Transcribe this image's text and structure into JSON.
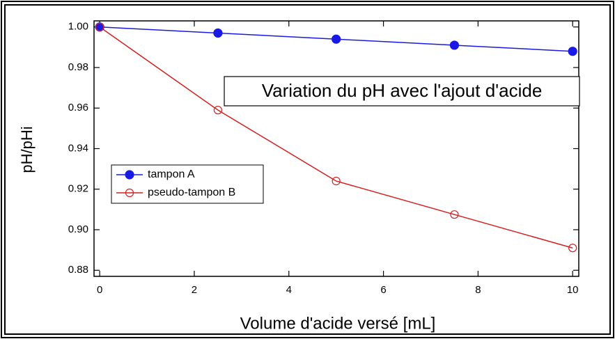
{
  "chart_data": {
    "type": "line",
    "x_label": "Volume d'acide versé [mL]",
    "y_label": "pH/pHi",
    "annotation": "Variation du pH avec l'ajout d'acide",
    "x": [
      0,
      2.5,
      5,
      7.5,
      10
    ],
    "series": [
      {
        "name": "tampon A",
        "color": "#1a1ae6",
        "marker": "filled",
        "values": [
          1.0,
          0.997,
          0.994,
          0.991,
          0.988
        ]
      },
      {
        "name": "pseudo-tampon B",
        "color": "#d42020",
        "marker": "open",
        "values": [
          1.0,
          0.959,
          0.924,
          0.9075,
          0.891
        ]
      }
    ],
    "xlim": [
      -0.12,
      10.13
    ],
    "ylim": [
      0.877,
      1.003
    ],
    "xticks": [
      0,
      2,
      4,
      6,
      8,
      10
    ],
    "yticks": [
      0.88,
      {
        "value": 0.9,
        "label": "0.90"
      },
      0.92,
      0.94,
      0.96,
      0.98,
      {
        "value": 1,
        "label": "1.00"
      }
    ],
    "legend": "left"
  }
}
